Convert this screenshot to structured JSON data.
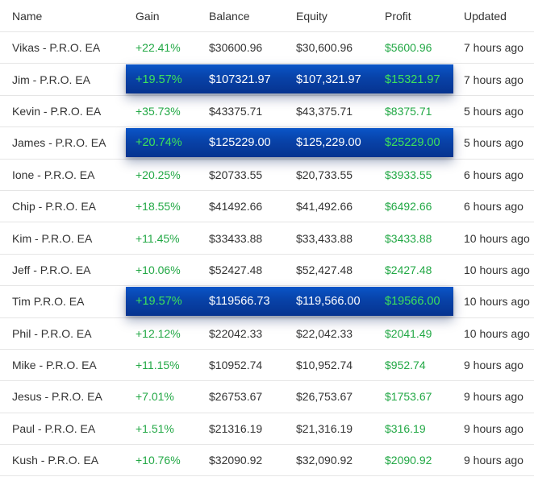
{
  "headers": {
    "name": "Name",
    "gain": "Gain",
    "balance": "Balance",
    "equity": "Equity",
    "profit": "Profit",
    "updated": "Updated"
  },
  "colors": {
    "positive": "#22a845",
    "highlight_band": "#0842a8",
    "highlight_positive": "#3ee35a"
  },
  "rows": [
    {
      "name": "Vikas - P.R.O. EA",
      "gain": "+22.41%",
      "balance": "$30600.96",
      "equity": "$30,600.96",
      "profit": "$5600.96",
      "updated": "7 hours ago",
      "highlighted": false
    },
    {
      "name": "Jim - P.R.O. EA",
      "gain": "+19.57%",
      "balance": "$107321.97",
      "equity": "$107,321.97",
      "profit": "$15321.97",
      "updated": "7 hours ago",
      "highlighted": true
    },
    {
      "name": "Kevin - P.R.O. EA",
      "gain": "+35.73%",
      "balance": "$43375.71",
      "equity": "$43,375.71",
      "profit": "$8375.71",
      "updated": "5 hours ago",
      "highlighted": false
    },
    {
      "name": "James - P.R.O. EA",
      "gain": "+20.74%",
      "balance": "$125229.00",
      "equity": "$125,229.00",
      "profit": "$25229.00",
      "updated": "5 hours ago",
      "highlighted": true
    },
    {
      "name": "Ione - P.R.O. EA",
      "gain": "+20.25%",
      "balance": "$20733.55",
      "equity": "$20,733.55",
      "profit": "$3933.55",
      "updated": "6 hours ago",
      "highlighted": false
    },
    {
      "name": "Chip - P.R.O. EA",
      "gain": "+18.55%",
      "balance": "$41492.66",
      "equity": "$41,492.66",
      "profit": "$6492.66",
      "updated": "6 hours ago",
      "highlighted": false
    },
    {
      "name": "Kim - P.R.O. EA",
      "gain": "+11.45%",
      "balance": "$33433.88",
      "equity": "$33,433.88",
      "profit": "$3433.88",
      "updated": "10 hours ago",
      "highlighted": false
    },
    {
      "name": "Jeff - P.R.O. EA",
      "gain": "+10.06%",
      "balance": "$52427.48",
      "equity": "$52,427.48",
      "profit": "$2427.48",
      "updated": "10 hours ago",
      "highlighted": false
    },
    {
      "name": "Tim P.R.O. EA",
      "gain": "+19.57%",
      "balance": "$119566.73",
      "equity": "$119,566.00",
      "profit": "$19566.00",
      "updated": "10 hours ago",
      "highlighted": true
    },
    {
      "name": "Phil - P.R.O. EA",
      "gain": "+12.12%",
      "balance": "$22042.33",
      "equity": "$22,042.33",
      "profit": "$2041.49",
      "updated": "10 hours ago",
      "highlighted": false
    },
    {
      "name": "Mike - P.R.O. EA",
      "gain": "+11.15%",
      "balance": "$10952.74",
      "equity": "$10,952.74",
      "profit": "$952.74",
      "updated": "9 hours ago",
      "highlighted": false
    },
    {
      "name": "Jesus - P.R.O. EA",
      "gain": "+7.01%",
      "balance": "$26753.67",
      "equity": "$26,753.67",
      "profit": "$1753.67",
      "updated": "9 hours ago",
      "highlighted": false
    },
    {
      "name": "Paul - P.R.O. EA",
      "gain": "+1.51%",
      "balance": "$21316.19",
      "equity": "$21,316.19",
      "profit": "$316.19",
      "updated": "9 hours ago",
      "highlighted": false
    },
    {
      "name": "Kush - P.R.O. EA",
      "gain": "+10.76%",
      "balance": "$32090.92",
      "equity": "$32,090.92",
      "profit": "$2090.92",
      "updated": "9 hours ago",
      "highlighted": false
    }
  ]
}
